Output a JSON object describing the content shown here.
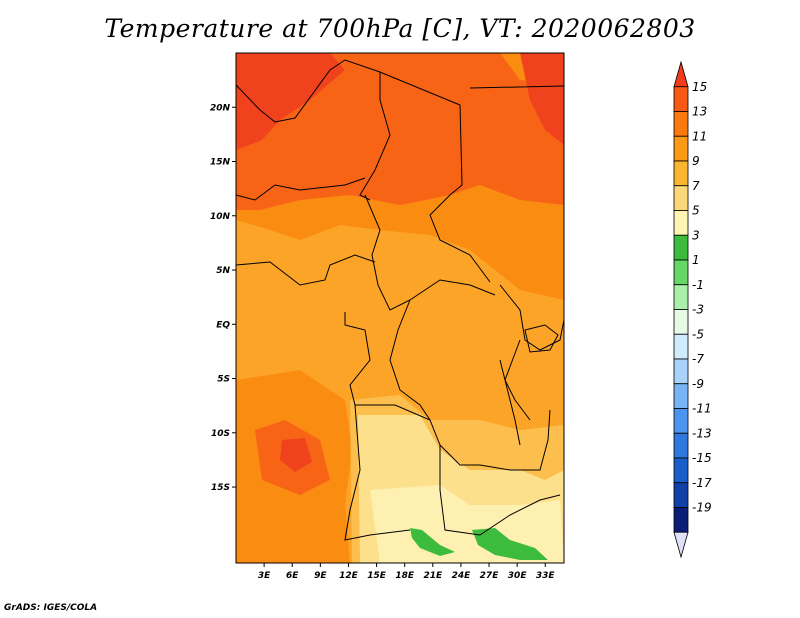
{
  "title": "Temperature at 700hPa [C], VT: 2020062803",
  "credit": "GrADS: IGES/COLA",
  "map": {
    "lat_range": [
      -22,
      25
    ],
    "lon_range": [
      0,
      35
    ],
    "lat_ticks": [
      "20N",
      "15N",
      "10N",
      "5N",
      "EQ",
      "5S",
      "10S",
      "15S"
    ],
    "lat_tick_values": [
      20,
      15,
      10,
      5,
      0,
      -5,
      -10,
      -15
    ],
    "lon_ticks": [
      "3E",
      "6E",
      "9E",
      "12E",
      "15E",
      "18E",
      "21E",
      "24E",
      "27E",
      "30E",
      "33E"
    ],
    "lon_tick_values": [
      3,
      6,
      9,
      12,
      15,
      18,
      21,
      24,
      27,
      30,
      33
    ]
  },
  "colorbar": {
    "labels": [
      "15",
      "13",
      "11",
      "9",
      "7",
      "5",
      "3",
      "1",
      "-1",
      "-3",
      "-5",
      "-7",
      "-9",
      "-11",
      "-13",
      "-15",
      "-17",
      "-19"
    ],
    "colors": [
      "#f03c1c",
      "#f75a14",
      "#fb7a10",
      "#fb9a16",
      "#fcb530",
      "#fdd878",
      "#fef4b4",
      "#3cbb3c",
      "#66d666",
      "#aaf0aa",
      "#e6fae6",
      "#d0ecfc",
      "#aad2fa",
      "#78b4f5",
      "#4b95ee",
      "#2e78e0",
      "#1a5fc9",
      "#1040a8",
      "#0a1e78",
      "#e0e0f8"
    ]
  },
  "field_colors": {
    "c13": "#f0421c",
    "c11": "#f86416",
    "c9": "#fb8c12",
    "c7": "#fca428",
    "c5": "#fcbe4c",
    "c3": "#fde08c",
    "c1": "#fef0b0",
    "green": "#3cbb3c"
  }
}
